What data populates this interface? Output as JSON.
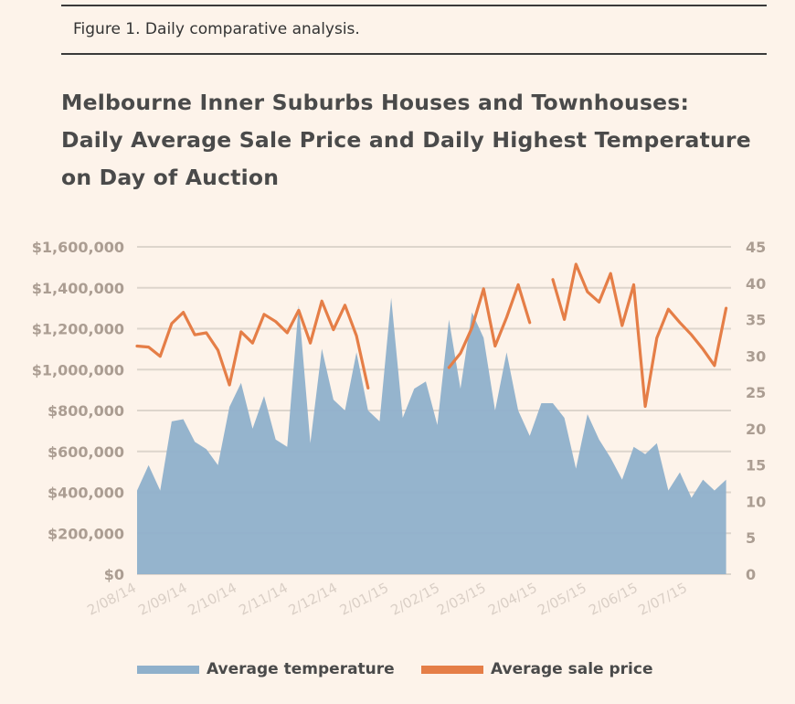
{
  "figure_caption": "Figure 1. Daily comparative analysis.",
  "colors": {
    "temperature": "#8fb0cb",
    "price": "#e57e47",
    "grid": "#ddd5cc",
    "background": "#fdf3ea"
  },
  "chart_data": {
    "type": "area+line",
    "title": "Melbourne Inner Suburbs Houses and Townhouses: Daily Average Sale Price and Daily Highest Temperature on Day of Auction",
    "xlabel": "",
    "ylabel": "",
    "x_start": "2014-08-02",
    "x_end": "2015-07-28",
    "x_tick_labels": [
      "2/08/14",
      "2/09/14",
      "2/10/14",
      "2/11/14",
      "2/12/14",
      "2/01/15",
      "2/02/15",
      "2/03/15",
      "2/04/15",
      "2/05/15",
      "2/06/15",
      "2/07/15"
    ],
    "y_left": {
      "ylim": [
        0,
        1600000
      ],
      "ticks": [
        0,
        200000,
        400000,
        600000,
        800000,
        1000000,
        1200000,
        1400000,
        1600000
      ],
      "tick_labels": [
        "$0",
        "$200,000",
        "$400,000",
        "$600,000",
        "$800,000",
        "$1,000,000",
        "$1,200,000",
        "$1,400,000",
        "$1,600,000"
      ]
    },
    "y_right": {
      "ylim": [
        0,
        45
      ],
      "ticks": [
        0,
        5,
        10,
        15,
        20,
        25,
        30,
        35,
        40,
        45
      ],
      "tick_labels": [
        "0",
        "5",
        "10",
        "15",
        "20",
        "25",
        "30",
        "35",
        "40",
        "45"
      ]
    },
    "grid": true,
    "legend_position": "bottom",
    "series": [
      {
        "name": "Average temperature",
        "type": "area",
        "axis": "right",
        "points": [
          [
            "2014-08-02",
            11.5
          ],
          [
            "2014-08-09",
            15.0
          ],
          [
            "2014-08-16",
            11.5
          ],
          [
            "2014-08-23",
            21.0
          ],
          [
            "2014-08-30",
            21.3
          ],
          [
            "2014-09-06",
            18.2
          ],
          [
            "2014-09-13",
            17.2
          ],
          [
            "2014-09-20",
            15.0
          ],
          [
            "2014-09-27",
            23.0
          ],
          [
            "2014-10-04",
            26.3
          ],
          [
            "2014-10-11",
            20.0
          ],
          [
            "2014-10-18",
            24.5
          ],
          [
            "2014-10-25",
            18.5
          ],
          [
            "2014-11-01",
            17.5
          ],
          [
            "2014-11-08",
            37.0
          ],
          [
            "2014-11-15",
            18.0
          ],
          [
            "2014-11-22",
            31.0
          ],
          [
            "2014-11-29",
            24.0
          ],
          [
            "2014-12-06",
            22.5
          ],
          [
            "2014-12-13",
            30.5
          ],
          [
            "2014-12-20",
            22.5
          ],
          [
            "2014-12-27",
            21.0
          ],
          [
            "2015-01-03",
            38.0
          ],
          [
            "2015-01-10",
            21.5
          ],
          [
            "2015-01-17",
            25.5
          ],
          [
            "2015-01-24",
            26.5
          ],
          [
            "2015-01-31",
            20.5
          ],
          [
            "2015-02-07",
            35.0
          ],
          [
            "2015-02-14",
            25.5
          ],
          [
            "2015-02-21",
            36.0
          ],
          [
            "2015-02-28",
            32.5
          ],
          [
            "2015-03-07",
            22.5
          ],
          [
            "2015-03-14",
            30.5
          ],
          [
            "2015-03-21",
            22.5
          ],
          [
            "2015-03-28",
            19.0
          ],
          [
            "2015-04-04",
            23.5
          ],
          [
            "2015-04-11",
            23.5
          ],
          [
            "2015-04-18",
            21.5
          ],
          [
            "2015-04-25",
            14.5
          ],
          [
            "2015-05-02",
            22.0
          ],
          [
            "2015-05-09",
            18.5
          ],
          [
            "2015-05-16",
            16.0
          ],
          [
            "2015-05-23",
            13.0
          ],
          [
            "2015-05-30",
            17.5
          ],
          [
            "2015-06-06",
            16.5
          ],
          [
            "2015-06-13",
            18.0
          ],
          [
            "2015-06-20",
            11.5
          ],
          [
            "2015-06-27",
            14.0
          ],
          [
            "2015-07-04",
            10.5
          ],
          [
            "2015-07-11",
            13.0
          ],
          [
            "2015-07-18",
            11.5
          ],
          [
            "2015-07-25",
            13.0
          ]
        ]
      },
      {
        "name": "Average sale price",
        "type": "line",
        "axis": "left",
        "segments": [
          [
            [
              "2014-08-02",
              1115000
            ],
            [
              "2014-08-09",
              1110000
            ],
            [
              "2014-08-16",
              1065000
            ],
            [
              "2014-08-23",
              1225000
            ],
            [
              "2014-08-30",
              1280000
            ],
            [
              "2014-09-06",
              1170000
            ],
            [
              "2014-09-13",
              1180000
            ],
            [
              "2014-09-20",
              1095000
            ],
            [
              "2014-09-27",
              925000
            ],
            [
              "2014-10-04",
              1185000
            ],
            [
              "2014-10-11",
              1130000
            ],
            [
              "2014-10-18",
              1270000
            ],
            [
              "2014-10-25",
              1235000
            ],
            [
              "2014-11-01",
              1180000
            ],
            [
              "2014-11-08",
              1290000
            ],
            [
              "2014-11-15",
              1130000
            ],
            [
              "2014-11-22",
              1335000
            ],
            [
              "2014-11-29",
              1195000
            ],
            [
              "2014-12-06",
              1315000
            ],
            [
              "2014-12-13",
              1165000
            ],
            [
              "2014-12-20",
              910000
            ]
          ],
          [
            [
              "2015-02-07",
              1010000
            ],
            [
              "2015-02-14",
              1080000
            ],
            [
              "2015-02-21",
              1205000
            ],
            [
              "2015-02-28",
              1395000
            ],
            [
              "2015-03-07",
              1115000
            ],
            [
              "2015-03-14",
              1255000
            ],
            [
              "2015-03-21",
              1415000
            ],
            [
              "2015-03-28",
              1230000
            ]
          ],
          [
            [
              "2015-04-11",
              1440000
            ],
            [
              "2015-04-18",
              1245000
            ],
            [
              "2015-04-25",
              1515000
            ],
            [
              "2015-05-02",
              1380000
            ],
            [
              "2015-05-09",
              1330000
            ],
            [
              "2015-05-16",
              1470000
            ],
            [
              "2015-05-23",
              1215000
            ],
            [
              "2015-05-30",
              1415000
            ],
            [
              "2015-06-06",
              820000
            ],
            [
              "2015-06-13",
              1155000
            ],
            [
              "2015-06-20",
              1295000
            ],
            [
              "2015-06-27",
              1230000
            ],
            [
              "2015-07-04",
              1170000
            ],
            [
              "2015-07-11",
              1100000
            ],
            [
              "2015-07-18",
              1020000
            ],
            [
              "2015-07-25",
              1300000
            ]
          ]
        ]
      }
    ]
  }
}
